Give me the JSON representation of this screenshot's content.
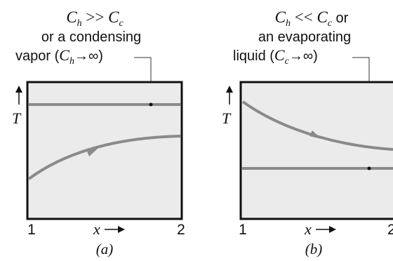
{
  "colors": {
    "plot_bg": "#ebebeb",
    "frame": "#111111",
    "curve": "#8a8a8a",
    "text": "#111111",
    "leader": "#333333"
  },
  "panel_a": {
    "caption_line1_main": "C",
    "caption_line1_sub_h": "h",
    "caption_line1_op": " >> ",
    "caption_line1_main2": "C",
    "caption_line1_sub_c": "c",
    "caption_line2": "or a condensing",
    "caption_line3_pre": "vapor (",
    "caption_line3_main": "C",
    "caption_line3_sub": "h",
    "caption_line3_post": "→∞)",
    "y_label": "T",
    "x_label": "x",
    "x_start": "1",
    "x_end": "2",
    "sub_label": "(a)"
  },
  "panel_b": {
    "caption_line1_main": "C",
    "caption_line1_sub_h": "h",
    "caption_line1_op": " << ",
    "caption_line1_main2": "C",
    "caption_line1_sub_c": "c",
    "caption_line1_tail": " or",
    "caption_line2": "an evaporating",
    "caption_line3_pre": "liquid (",
    "caption_line3_main": "C",
    "caption_line3_sub": "c",
    "caption_line3_post": "→∞)",
    "y_label": "T",
    "x_label": "x",
    "x_start": "1",
    "x_end": "2",
    "sub_label": "(b)"
  }
}
